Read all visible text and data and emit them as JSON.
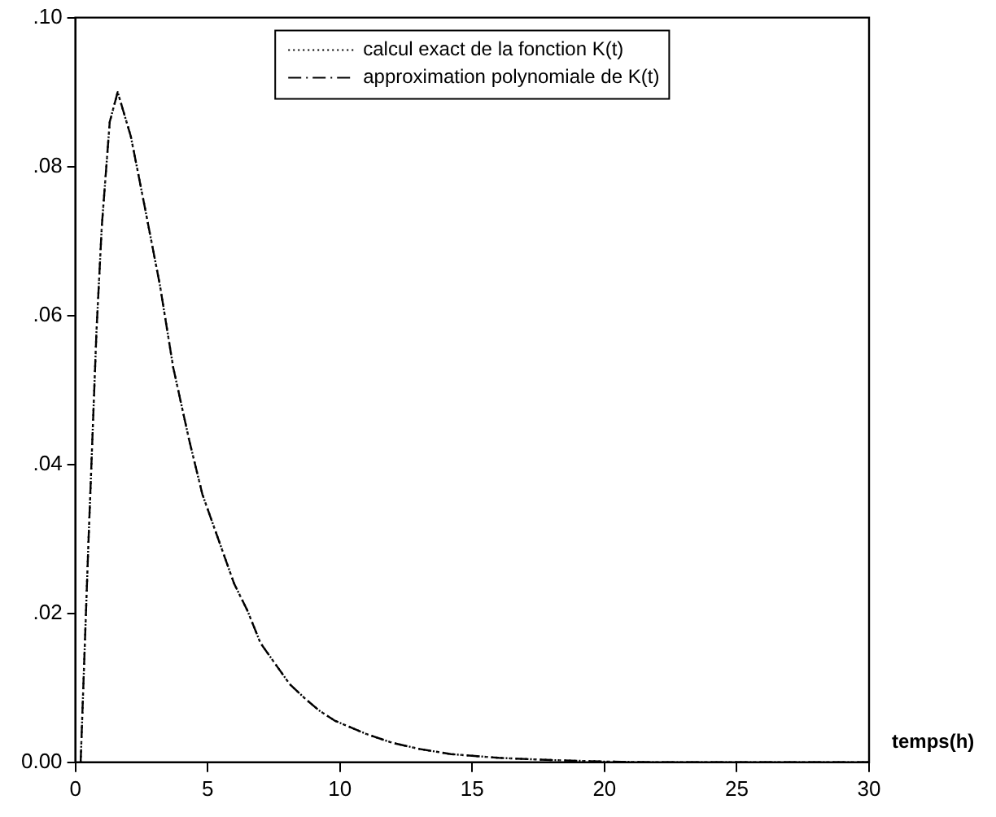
{
  "chart_data": {
    "type": "line",
    "xlabel": "temps(h)",
    "x": [
      0.2,
      0.5,
      0.8,
      1.0,
      1.3,
      1.6,
      2.1,
      2.6,
      3.2,
      3.7,
      4.3,
      4.8,
      5.4,
      6.0,
      6.5,
      7.0,
      7.6,
      8.1,
      8.7,
      9.2,
      9.8,
      11,
      12,
      13,
      14.2,
      16,
      18,
      20,
      22,
      25,
      28,
      30
    ],
    "series": [
      {
        "name": "calcul exact de la fonction K(t)",
        "color": "#000000",
        "line_style": "dotted",
        "values": [
          0,
          0.03,
          0.058,
          0.072,
          0.086,
          0.09,
          0.084,
          0.075,
          0.064,
          0.053,
          0.0433,
          0.036,
          0.03,
          0.024,
          0.0204,
          0.016,
          0.013,
          0.0105,
          0.0085,
          0.007,
          0.0056,
          0.0038,
          0.0026,
          0.0018,
          0.0011,
          0.0006,
          0.0003,
          0.0001,
          0,
          0,
          0,
          0
        ]
      },
      {
        "name": "approximation polynomiale de K(t)",
        "color": "#000000",
        "line_style": "dashdot",
        "values": [
          0,
          0.03,
          0.058,
          0.072,
          0.086,
          0.09,
          0.084,
          0.075,
          0.064,
          0.053,
          0.0433,
          0.036,
          0.03,
          0.024,
          0.0204,
          0.016,
          0.013,
          0.0105,
          0.0085,
          0.007,
          0.0056,
          0.0038,
          0.0026,
          0.0018,
          0.0011,
          0.0006,
          0.0003,
          0.0001,
          0,
          0,
          0,
          0
        ]
      }
    ],
    "xlim": [
      0,
      30
    ],
    "xticks": [
      0,
      5,
      10,
      15,
      20,
      25,
      30
    ],
    "ylim": [
      0,
      0.1
    ],
    "yticks": [
      {
        "value": 0,
        "label": "0.00"
      },
      {
        "value": 0.02,
        "label": ".02"
      },
      {
        "value": 0.04,
        "label": ".04"
      },
      {
        "value": 0.06,
        "label": ".06"
      },
      {
        "value": 0.08,
        "label": ".08"
      },
      {
        "value": 0.1,
        "label": ".10"
      }
    ],
    "grid": false,
    "legend": "top",
    "marker": "none"
  }
}
